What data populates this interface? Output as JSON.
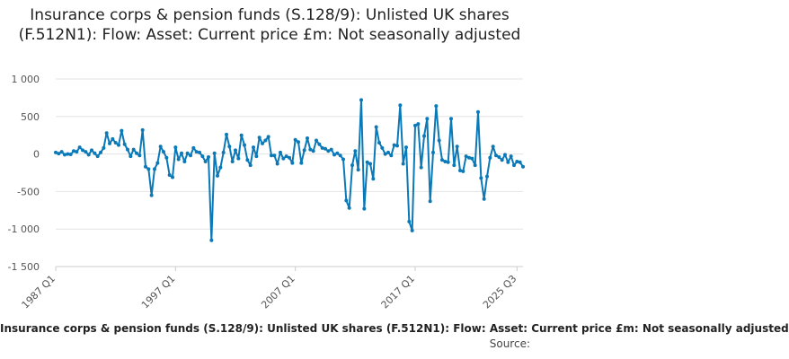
{
  "chart_data": {
    "type": "line",
    "title": "Insurance corps & pension funds (S.128/9): Unlisted UK shares (F.512N1): Flow: Asset: Current price £m: Not seasonally adjusted",
    "xlabel": "",
    "ylabel": "",
    "ylim": [
      -1500,
      1000
    ],
    "y_ticks": [
      1000,
      500,
      0,
      -500,
      -1000,
      -1500
    ],
    "y_tick_labels": [
      "1 000",
      "500",
      "0",
      "-500",
      "-1 000",
      "-1 500"
    ],
    "x_tick_labels": [
      "1987 Q1",
      "1997 Q1",
      "2007 Q1",
      "2017 Q1",
      "2025 Q3"
    ],
    "x_start": "1987 Q1",
    "frequency": "quarterly",
    "grid": true,
    "color": "#0b79b8",
    "series": [
      {
        "name": "Insurance corps & pension funds (S.128/9): Unlisted UK shares (F.512N1): Flow: Asset: Current price £m: Not seasonally adjusted",
        "values": [
          20,
          5,
          30,
          -10,
          0,
          -5,
          40,
          30,
          90,
          50,
          30,
          -10,
          50,
          10,
          -30,
          20,
          80,
          280,
          140,
          200,
          150,
          120,
          310,
          130,
          60,
          -30,
          60,
          10,
          -20,
          320,
          -170,
          -200,
          -550,
          -200,
          -120,
          100,
          30,
          -50,
          -280,
          -310,
          90,
          -70,
          10,
          -100,
          10,
          -20,
          80,
          30,
          20,
          -30,
          -100,
          -40,
          -1150,
          10,
          -290,
          -180,
          20,
          260,
          100,
          -100,
          50,
          -60,
          250,
          120,
          -80,
          -150,
          90,
          -30,
          220,
          140,
          180,
          230,
          -20,
          -20,
          -130,
          20,
          -60,
          -30,
          -50,
          -120,
          190,
          160,
          -120,
          50,
          210,
          60,
          40,
          180,
          130,
          80,
          70,
          40,
          60,
          -10,
          10,
          -20,
          -70,
          -620,
          -720,
          -150,
          40,
          -210,
          720,
          -730,
          -110,
          -130,
          -330,
          360,
          150,
          80,
          0,
          20,
          -20,
          120,
          110,
          650,
          -130,
          90,
          -900,
          -1020,
          380,
          400,
          -180,
          240,
          470,
          -630,
          20,
          640,
          180,
          -80,
          -100,
          -110,
          470,
          -150,
          100,
          -220,
          -230,
          -30,
          -50,
          -60,
          -150,
          560,
          -320,
          -600,
          -300,
          -50,
          100,
          -20,
          -40,
          -80,
          -10,
          -110,
          -30,
          -150,
          -100,
          -110,
          -170
        ]
      }
    ],
    "legend_label": "Insurance corps & pension funds (S.128/9): Unlisted UK shares (F.512N1): Flow: Asset: Current price £m: Not seasonally adjusted",
    "source_label": "Source:"
  }
}
